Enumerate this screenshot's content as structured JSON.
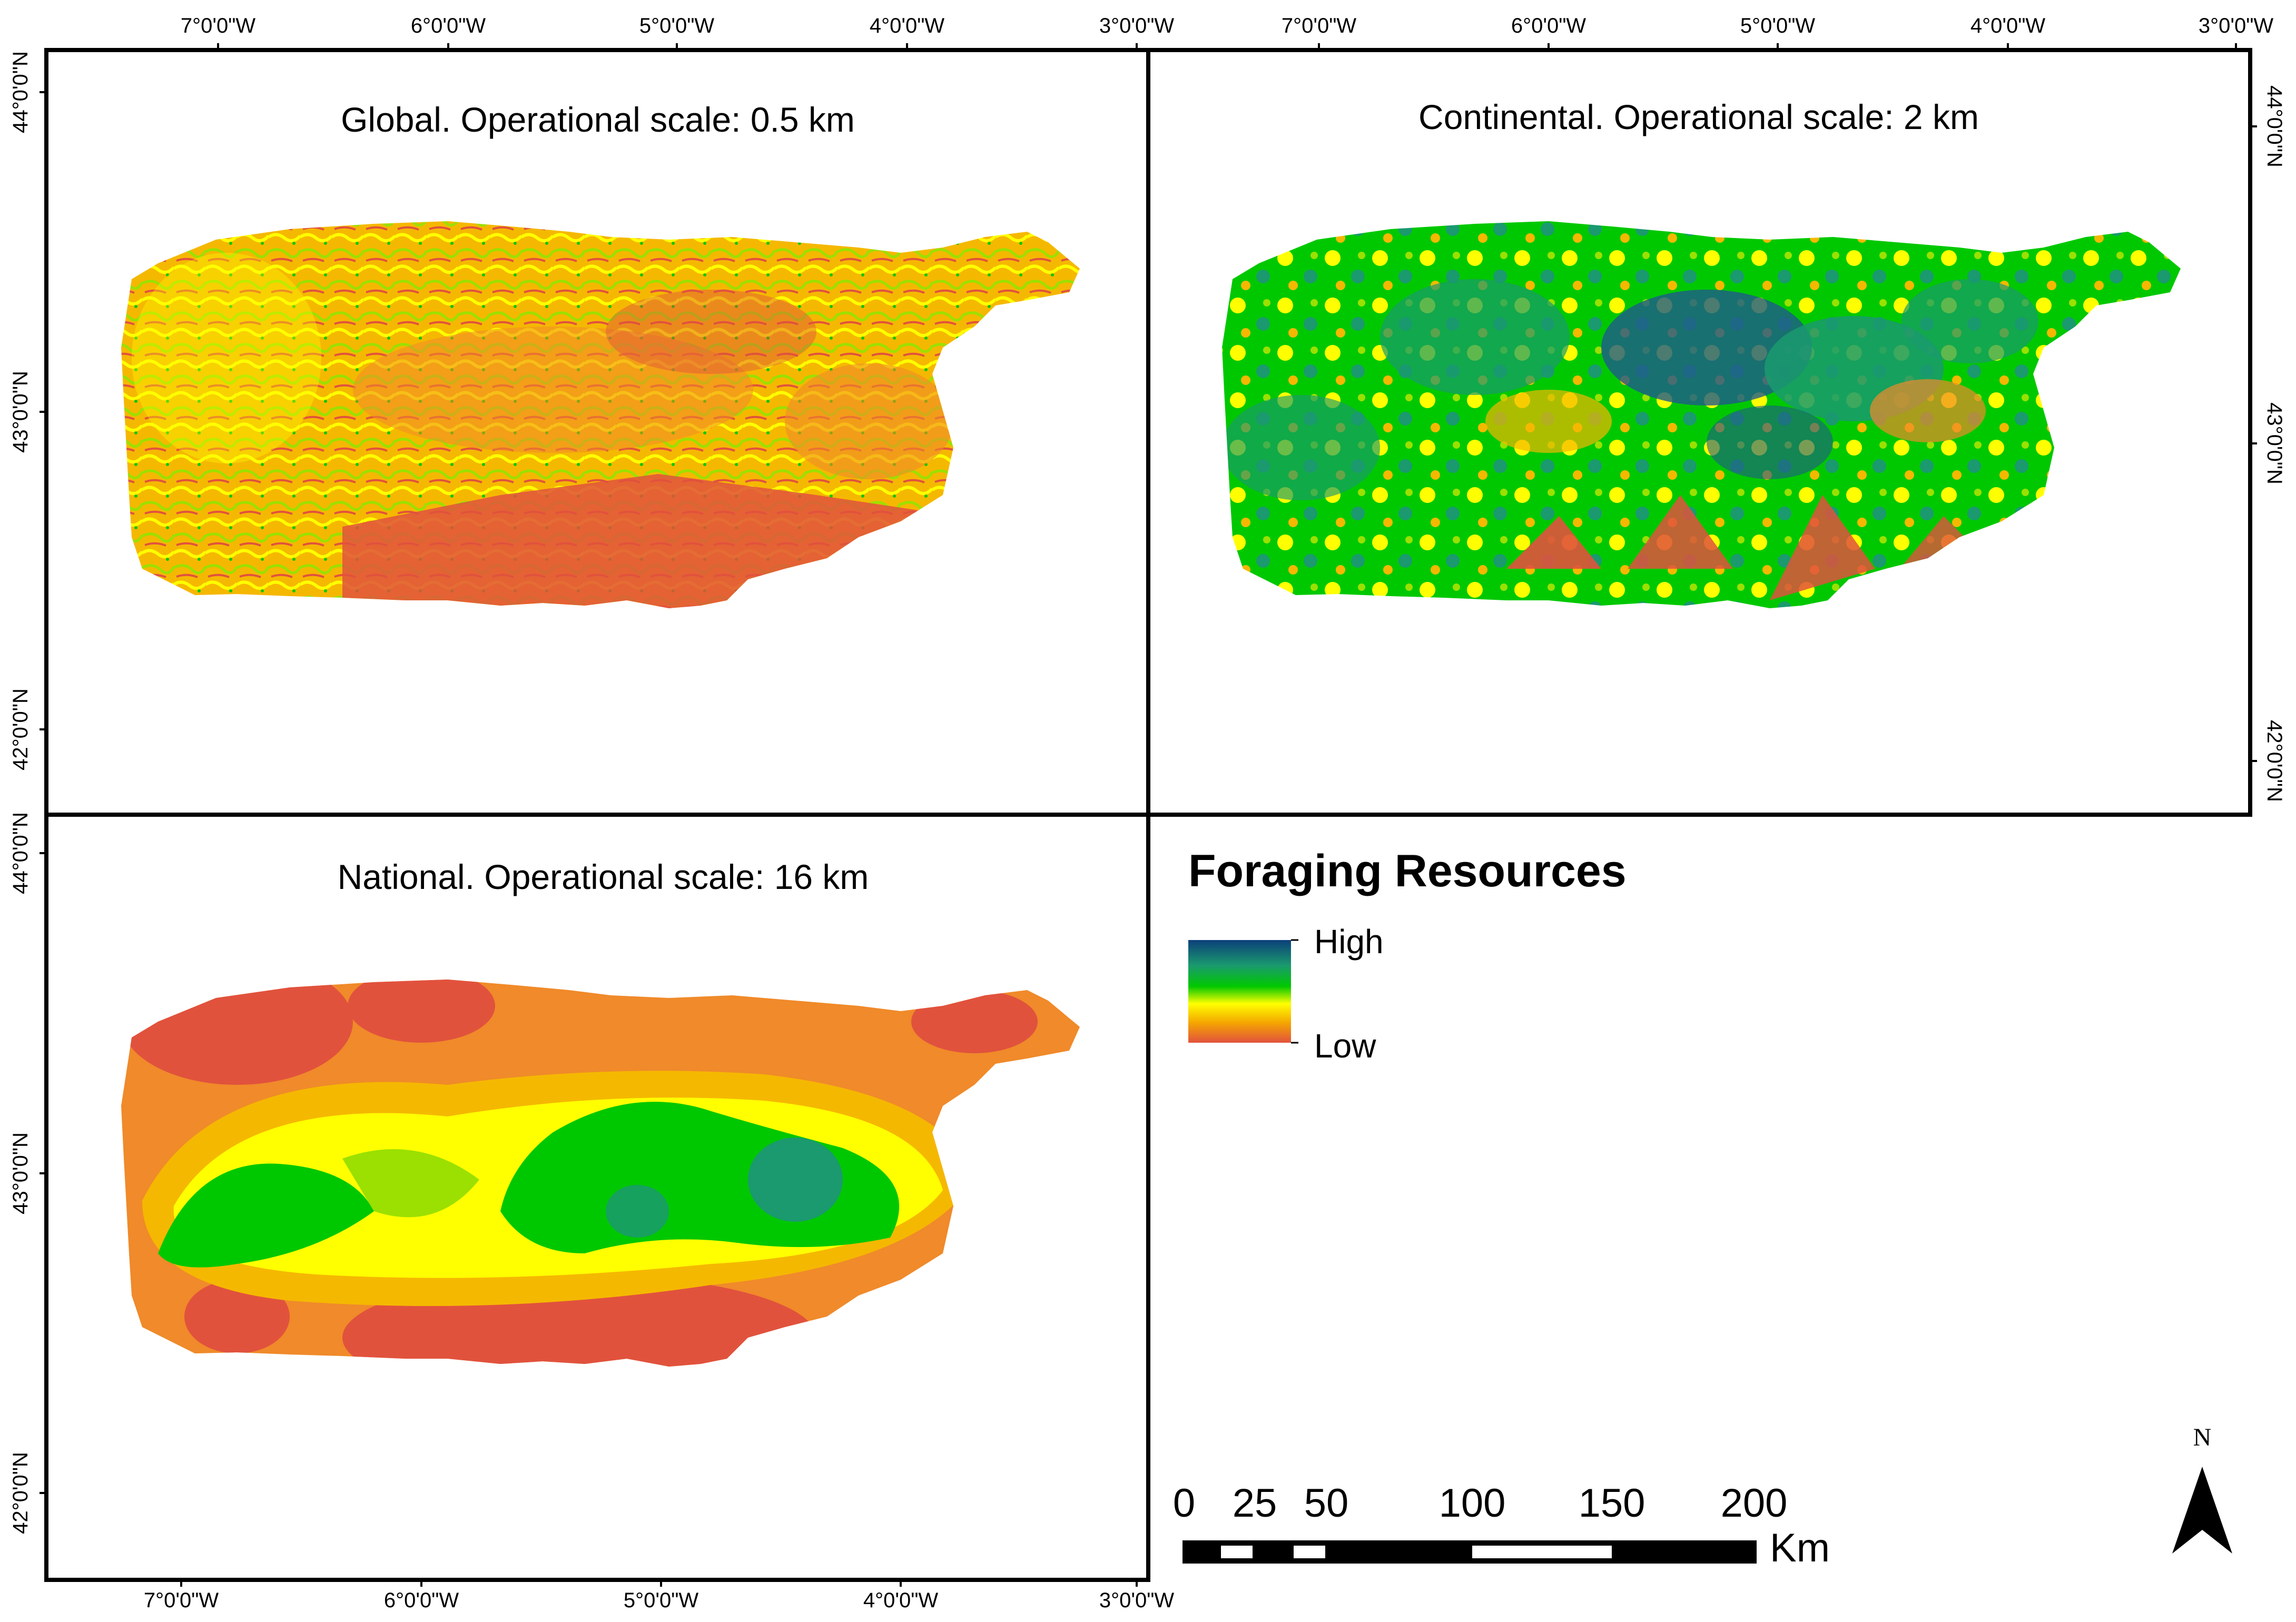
{
  "panels": [
    {
      "title": "Global. Operational scale: 0.5 km"
    },
    {
      "title": "Continental. Operational scale: 2 km"
    },
    {
      "title": "National. Operational scale: 16 km"
    }
  ],
  "axes": {
    "lon_top_left": [
      "7°0'0\"W",
      "6°0'0\"W",
      "5°0'0\"W",
      "4°0'0\"W",
      "3°0'0\"W"
    ],
    "lon_top_right": [
      "7°0'0\"W",
      "6°0'0\"W",
      "5°0'0\"W",
      "4°0'0\"W",
      "3°0'0\"W"
    ],
    "lon_bottom": [
      "7°0'0\"W",
      "6°0'0\"W",
      "5°0'0\"W",
      "4°0'0\"W",
      "3°0'0\"W"
    ],
    "lat_left_top": [
      "44°0'0\"N",
      "43°0'0\"N",
      "42°0'0\"N"
    ],
    "lat_left_bottom": [
      "44°0'0\"N",
      "43°0'0\"N",
      "42°0'0\"N"
    ],
    "lat_right": [
      "44°0'0\"N",
      "43°0'0\"N",
      "42°0'0\"N"
    ]
  },
  "legend": {
    "title": "Foraging Resources",
    "high": "High",
    "low": "Low",
    "colors": [
      "#0c3f7a",
      "#1a9a6e",
      "#00c800",
      "#ffff00",
      "#f5a800",
      "#e1523d"
    ]
  },
  "scalebar": {
    "ticks": [
      "0",
      "25",
      "50",
      "100",
      "150",
      "200"
    ],
    "unit": "Km"
  },
  "north_arrow": {
    "label": "N"
  },
  "colors": {
    "red": "#e1523d",
    "orange": "#f08a2a",
    "amber": "#f5b800",
    "yellow": "#ffff00",
    "lime": "#9be000",
    "green": "#00c800",
    "teal": "#1a9a6e",
    "blue": "#1f5a8c"
  }
}
